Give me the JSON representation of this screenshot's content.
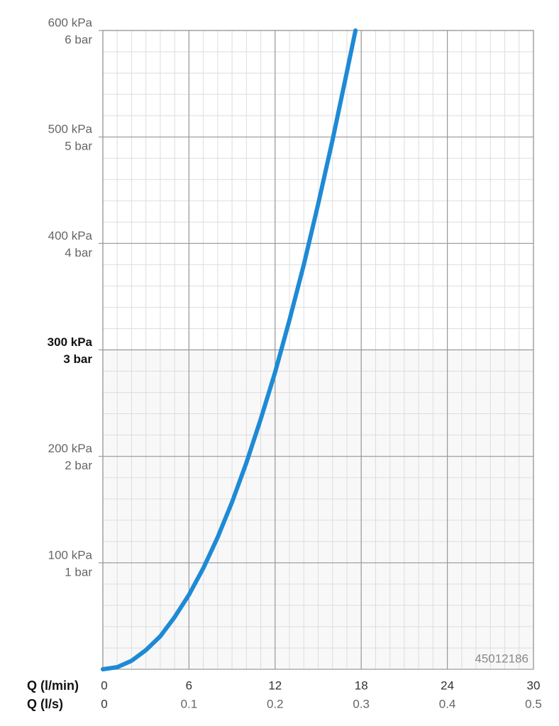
{
  "chart_data": {
    "type": "line",
    "xlabel": "Q (l/min)",
    "x2label": "Q (l/s)",
    "annotation": "45012186",
    "x": [
      0,
      1,
      2,
      3,
      4,
      5,
      6,
      7,
      8,
      9,
      10,
      11,
      12,
      13,
      14,
      15,
      16,
      17,
      17.6
    ],
    "series": [
      {
        "color": "#1e8ad6",
        "values": [
          0,
          2,
          8,
          18,
          31,
          49,
          70,
          95,
          124,
          157,
          194,
          235,
          279,
          328,
          380,
          437,
          497,
          561,
          600
        ]
      }
    ],
    "xlim": [
      0,
      30
    ],
    "xticks": [
      0,
      6,
      12,
      18,
      24,
      30
    ],
    "x2lim": [
      0,
      0.5
    ],
    "x2ticks": [
      0,
      0.1,
      0.2,
      0.3,
      0.4,
      0.5
    ],
    "ylim": [
      0,
      600
    ],
    "yticks": [
      {
        "value": 100,
        "label": "100 kPa"
      },
      {
        "value": 200,
        "label": "200 kPa"
      },
      {
        "value": 300,
        "label": "300 kPa"
      },
      {
        "value": 400,
        "label": "400 kPa"
      },
      {
        "value": 500,
        "label": "500 kPa"
      },
      {
        "value": 600,
        "label": "600 kPa"
      }
    ],
    "y2lim": [
      0,
      6
    ],
    "y2ticks": [
      {
        "value": 1,
        "label": "1 bar"
      },
      {
        "value": 2,
        "label": "2 bar"
      },
      {
        "value": 3,
        "label": "3 bar"
      },
      {
        "value": 4,
        "label": "4 bar"
      },
      {
        "value": 5,
        "label": "5 bar"
      },
      {
        "value": 6,
        "label": "6 bar"
      }
    ],
    "emphasized_ytick_index": 2,
    "grid": true,
    "minor_grid": {
      "x_step": 1,
      "y_step": 20
    }
  }
}
